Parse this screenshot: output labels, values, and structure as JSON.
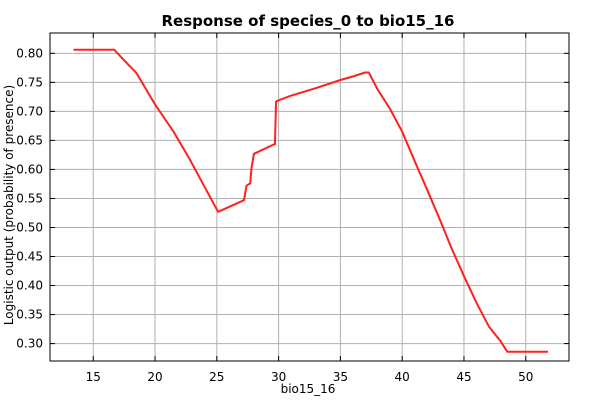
{
  "chart_data": {
    "type": "line",
    "title": "Response of species_0 to bio15_16",
    "xlabel": "bio15_16",
    "ylabel": "Logistic output (probability of presence)",
    "xlim": [
      11.5,
      53.5
    ],
    "ylim": [
      0.27,
      0.835
    ],
    "xticks": [
      15,
      20,
      25,
      30,
      35,
      40,
      45,
      50
    ],
    "yticks": [
      0.3,
      0.35,
      0.4,
      0.45,
      0.5,
      0.55,
      0.6,
      0.65,
      0.7,
      0.75,
      0.8
    ],
    "grid": true,
    "colors": {
      "line": "#ff2020",
      "grid": "#b0b0b0",
      "frame": "#000000"
    },
    "series": [
      {
        "x": [
          13.4,
          16.7,
          17.5,
          18.5,
          20.0,
          21.5,
          22.8,
          24.0,
          25.1,
          27.2,
          27.4,
          27.7,
          27.8,
          28.0,
          29.6,
          29.7,
          29.8,
          30.0,
          31.0,
          33.0,
          35.0,
          36.0,
          37.0,
          37.3,
          38.0,
          39.0,
          40.0,
          41.0,
          42.0,
          43.0,
          44.0,
          45.0,
          46.0,
          47.0,
          48.0,
          48.5,
          49.0,
          51.8
        ],
        "values": [
          0.806,
          0.806,
          0.788,
          0.766,
          0.712,
          0.665,
          0.618,
          0.57,
          0.527,
          0.547,
          0.572,
          0.576,
          0.601,
          0.627,
          0.643,
          0.643,
          0.717,
          0.719,
          0.727,
          0.74,
          0.754,
          0.76,
          0.767,
          0.767,
          0.738,
          0.705,
          0.665,
          0.615,
          0.566,
          0.516,
          0.464,
          0.416,
          0.371,
          0.33,
          0.303,
          0.286,
          0.286,
          0.286
        ]
      }
    ]
  }
}
